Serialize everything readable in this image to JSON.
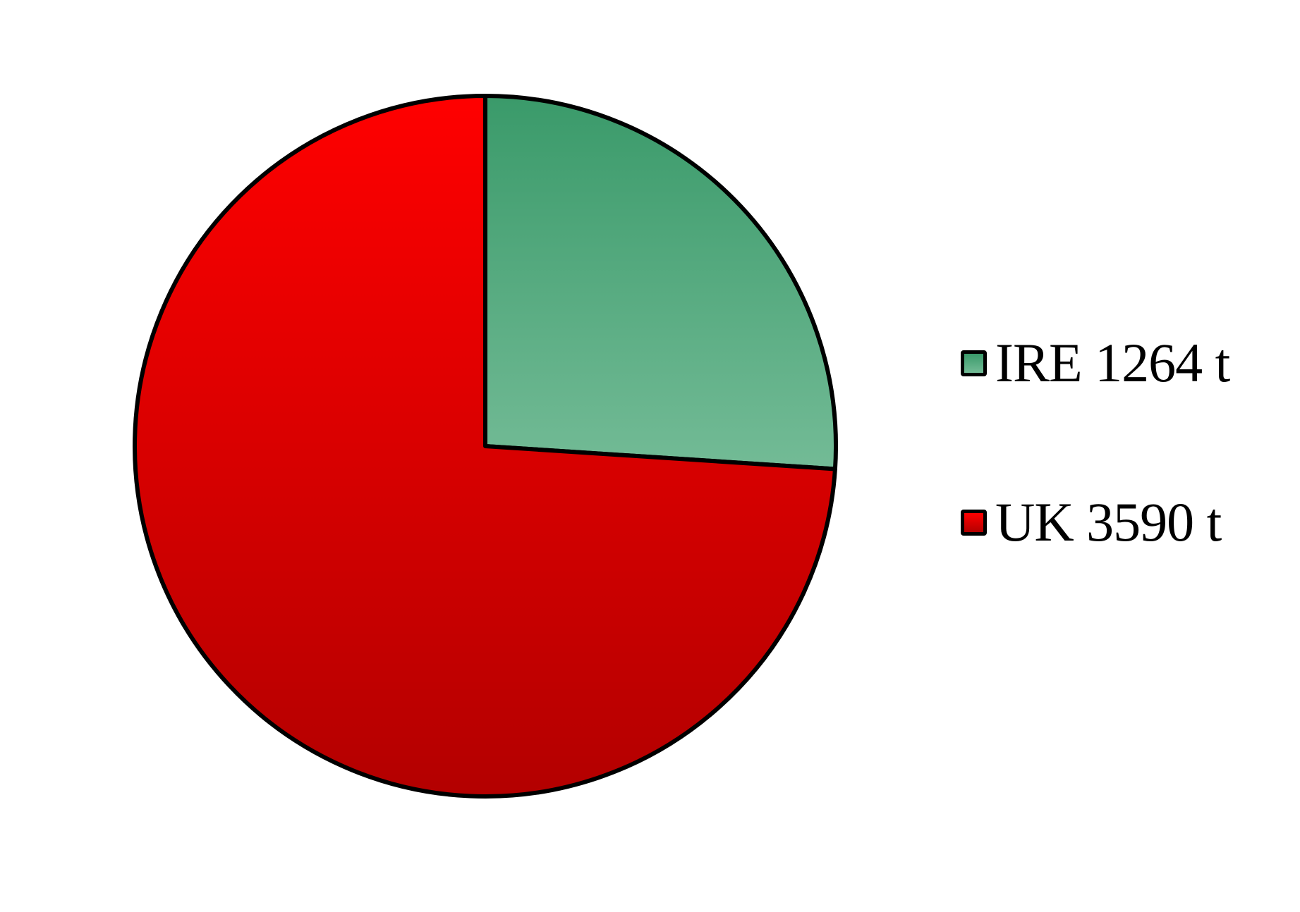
{
  "chart_data": {
    "type": "pie",
    "title": "",
    "slices": [
      {
        "label": "IRE 1264 t",
        "category": "IRE",
        "value": 1264,
        "unit": "t",
        "color_top": "#3a9a6a",
        "color_bottom": "#73bb96"
      },
      {
        "label": "UK 3590 t",
        "category": "UK",
        "value": 3590,
        "unit": "t",
        "color_top": "#ff0000",
        "color_bottom": "#b30000"
      }
    ],
    "start_angle_deg": 0,
    "direction": "clockwise",
    "legend_position": "right",
    "outline_color": "#000000"
  }
}
